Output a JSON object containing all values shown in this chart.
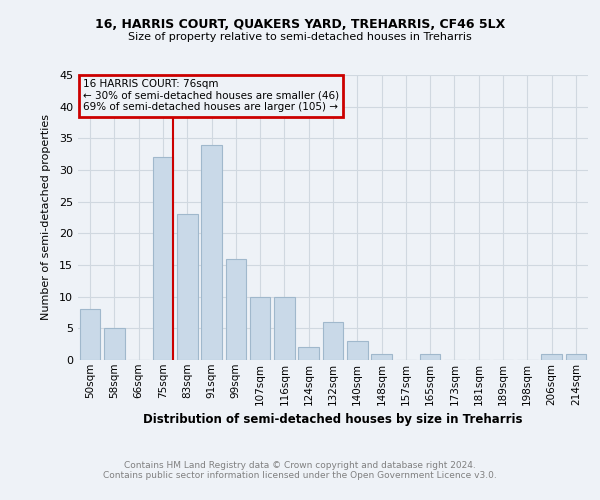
{
  "title": "16, HARRIS COURT, QUAKERS YARD, TREHARRIS, CF46 5LX",
  "subtitle": "Size of property relative to semi-detached houses in Treharris",
  "xlabel": "Distribution of semi-detached houses by size in Treharris",
  "ylabel": "Number of semi-detached properties",
  "footer1": "Contains HM Land Registry data © Crown copyright and database right 2024.",
  "footer2": "Contains public sector information licensed under the Open Government Licence v3.0.",
  "bar_labels": [
    "50sqm",
    "58sqm",
    "66sqm",
    "75sqm",
    "83sqm",
    "91sqm",
    "99sqm",
    "107sqm",
    "116sqm",
    "124sqm",
    "132sqm",
    "140sqm",
    "148sqm",
    "157sqm",
    "165sqm",
    "173sqm",
    "181sqm",
    "189sqm",
    "198sqm",
    "206sqm",
    "214sqm"
  ],
  "bar_values": [
    8,
    5,
    0,
    32,
    23,
    34,
    16,
    10,
    10,
    2,
    6,
    3,
    1,
    0,
    1,
    0,
    0,
    0,
    0,
    1,
    1
  ],
  "bar_color": "#c9d9e8",
  "bar_edge_color": "#a0b8cc",
  "vline_color": "#cc0000",
  "annotation_title": "16 HARRIS COURT: 76sqm",
  "annotation_line1": "← 30% of semi-detached houses are smaller (46)",
  "annotation_line2": "69% of semi-detached houses are larger (105) →",
  "annotation_box_color": "#cc0000",
  "ylim": [
    0,
    45
  ],
  "yticks": [
    0,
    5,
    10,
    15,
    20,
    25,
    30,
    35,
    40,
    45
  ],
  "grid_color": "#d0d8e0",
  "background_color": "#eef2f7"
}
